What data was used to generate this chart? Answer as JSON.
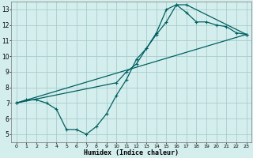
{
  "xlabel": "Humidex (Indice chaleur)",
  "bg_color": "#d4eeee",
  "grid_color": "#aacccc",
  "line_color": "#006060",
  "xlim": [
    -0.5,
    23.5
  ],
  "ylim": [
    4.5,
    13.5
  ],
  "xticks": [
    0,
    1,
    2,
    3,
    4,
    5,
    6,
    7,
    8,
    9,
    10,
    11,
    12,
    13,
    14,
    15,
    16,
    17,
    18,
    19,
    20,
    21,
    22,
    23
  ],
  "yticks": [
    5,
    6,
    7,
    8,
    9,
    10,
    11,
    12,
    13
  ],
  "line1_x": [
    0,
    1,
    2,
    3,
    4,
    5,
    6,
    7,
    8,
    9,
    10,
    11,
    12,
    13,
    14,
    15,
    16,
    17,
    18,
    19,
    20,
    21,
    22,
    23
  ],
  "line1_y": [
    7.0,
    7.2,
    7.2,
    7.0,
    6.6,
    5.3,
    5.3,
    5.0,
    5.5,
    6.3,
    7.5,
    8.5,
    9.8,
    10.5,
    11.5,
    13.0,
    13.3,
    12.8,
    12.2,
    12.2,
    12.0,
    11.9,
    11.5,
    11.4
  ],
  "line2_x": [
    0,
    10,
    11,
    12,
    13,
    14,
    15,
    16,
    17,
    23
  ],
  "line2_y": [
    7.0,
    8.3,
    9.0,
    9.5,
    10.5,
    11.4,
    12.2,
    13.3,
    13.3,
    11.4
  ],
  "line3_x": [
    0,
    23
  ],
  "line3_y": [
    7.0,
    11.4
  ]
}
